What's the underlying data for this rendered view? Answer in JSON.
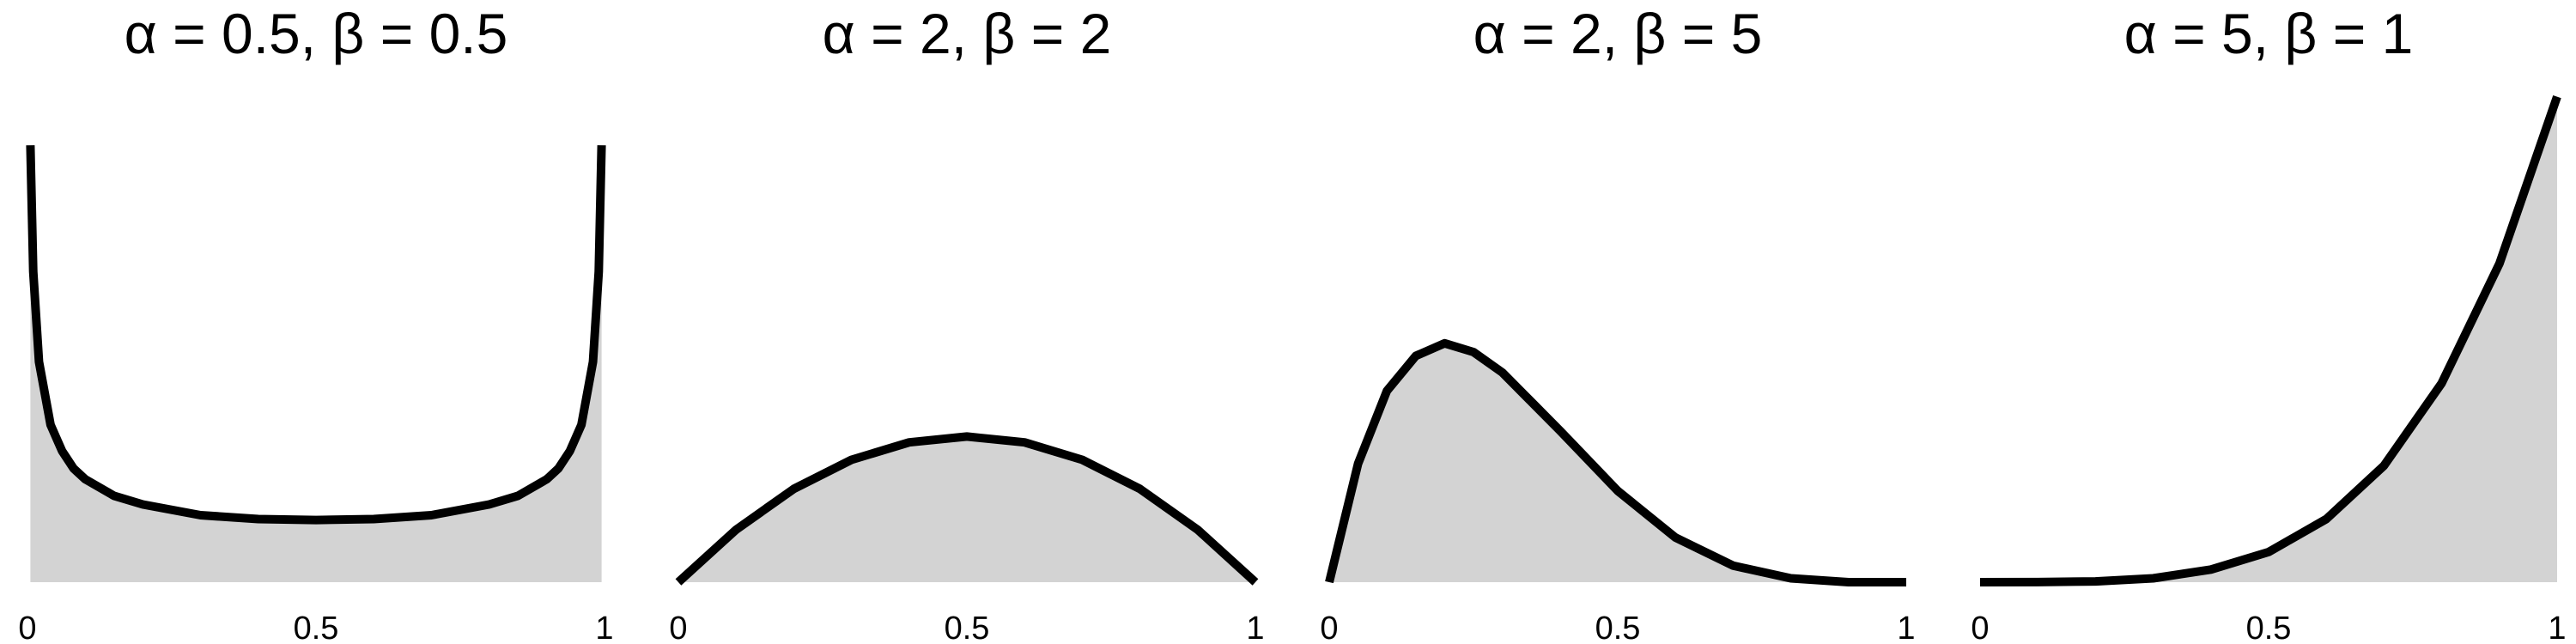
{
  "chart_data": [
    {
      "type": "area",
      "title": "α = 0.5, β = 0.5",
      "xlabel": "",
      "ylabel": "",
      "xlim": [
        0,
        1
      ],
      "ylim": [
        0,
        5.2
      ],
      "xticks": [
        "0",
        "0.5",
        "1"
      ],
      "grid": false,
      "series": [
        {
          "x": [
            0.005,
            0.01,
            0.02,
            0.04,
            0.06,
            0.08,
            0.1,
            0.15,
            0.2,
            0.3,
            0.4,
            0.5,
            0.6,
            0.7,
            0.8,
            0.85,
            0.9,
            0.92,
            0.94,
            0.96,
            0.98,
            0.99,
            0.995
          ],
          "y": [
            4.5,
            3.2,
            2.27,
            1.62,
            1.35,
            1.17,
            1.06,
            0.89,
            0.8,
            0.69,
            0.65,
            0.64,
            0.65,
            0.69,
            0.8,
            0.89,
            1.06,
            1.17,
            1.35,
            1.62,
            2.27,
            3.2,
            4.5
          ]
        }
      ]
    },
    {
      "type": "area",
      "title": "α = 2, β = 2",
      "xlabel": "",
      "ylabel": "",
      "xlim": [
        0,
        1
      ],
      "ylim": [
        0,
        5.2
      ],
      "xticks": [
        "0",
        "0.5",
        "1"
      ],
      "grid": false,
      "series": [
        {
          "x": [
            0,
            0.1,
            0.2,
            0.3,
            0.4,
            0.5,
            0.6,
            0.7,
            0.8,
            0.9,
            1
          ],
          "y": [
            0,
            0.54,
            0.96,
            1.26,
            1.44,
            1.5,
            1.44,
            1.26,
            0.96,
            0.54,
            0
          ]
        }
      ]
    },
    {
      "type": "area",
      "title": "α = 2, β = 5",
      "xlabel": "",
      "ylabel": "",
      "xlim": [
        0,
        1
      ],
      "ylim": [
        0,
        5.2
      ],
      "xticks": [
        "0",
        "0.5",
        "1"
      ],
      "grid": false,
      "series": [
        {
          "x": [
            0,
            0.05,
            0.1,
            0.15,
            0.2,
            0.25,
            0.3,
            0.35,
            0.4,
            0.5,
            0.6,
            0.7,
            0.8,
            0.9,
            1
          ],
          "y": [
            0,
            1.22,
            1.97,
            2.33,
            2.46,
            2.37,
            2.16,
            1.86,
            1.56,
            0.94,
            0.46,
            0.17,
            0.04,
            0,
            0
          ]
        }
      ]
    },
    {
      "type": "area",
      "title": "α = 5, β = 1",
      "xlabel": "",
      "ylabel": "",
      "xlim": [
        0,
        1
      ],
      "ylim": [
        0,
        5.2
      ],
      "xticks": [
        "0",
        "0.5",
        "1"
      ],
      "grid": false,
      "series": [
        {
          "x": [
            0,
            0.1,
            0.2,
            0.3,
            0.4,
            0.5,
            0.6,
            0.7,
            0.8,
            0.9,
            1
          ],
          "y": [
            0,
            0.0005,
            0.008,
            0.04,
            0.13,
            0.31,
            0.65,
            1.2,
            2.05,
            3.28,
            5
          ]
        }
      ]
    }
  ],
  "colors": {
    "fill": "#d3d3d3",
    "line": "#000000"
  }
}
